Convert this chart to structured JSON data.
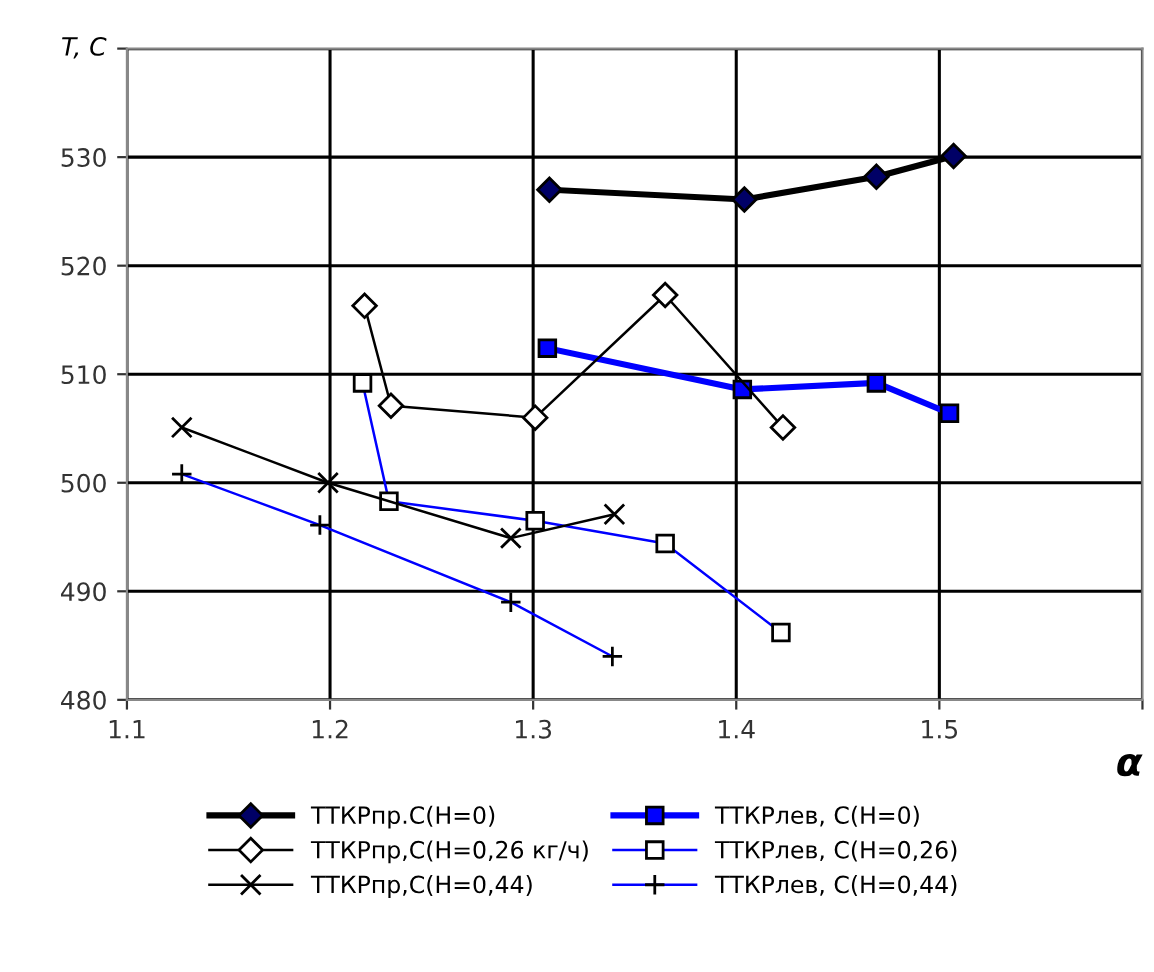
{
  "chart_data": {
    "type": "line",
    "ylabel": "T, C",
    "xlabel": "α",
    "xlim": [
      1.1,
      1.6
    ],
    "xticks": [
      1.1,
      1.2,
      1.3,
      1.4,
      1.5,
      {
        "value": 1.6,
        "label": null
      }
    ],
    "ylim": [
      480,
      540
    ],
    "yticks": [
      480,
      490,
      500,
      510,
      520,
      530,
      {
        "value": 540,
        "label": null
      }
    ],
    "grid": true,
    "legend": "bottom",
    "series": [
      {
        "name": "ТТКРпр.С(Н=0)",
        "color": "#000000",
        "marker": "diamond",
        "x": [
          1.308,
          1.404,
          1.469,
          1.507
        ],
        "values": [
          527.0,
          526.1,
          528.2,
          530.1
        ]
      },
      {
        "name": "ТТКРлев, С(Н=0)",
        "color": "#0000ff",
        "marker": "square",
        "x": [
          1.307,
          1.403,
          1.469,
          1.505
        ],
        "values": [
          512.4,
          508.6,
          509.2,
          506.4
        ]
      },
      {
        "name": "ТТКРпр,С(Н=0,26 кг/ч)",
        "color": "#000000",
        "marker": "diamond",
        "x": [
          1.217,
          1.23,
          1.301,
          1.365,
          1.423
        ],
        "values": [
          516.3,
          507.1,
          506.0,
          517.3,
          505.1
        ]
      },
      {
        "name": "ТТКРлев, С(Н=0,26)",
        "color": "#0000ff",
        "marker": "square",
        "x": [
          1.216,
          1.229,
          1.301,
          1.365,
          1.422
        ],
        "values": [
          509.2,
          498.3,
          496.5,
          494.4,
          486.2
        ]
      },
      {
        "name": "ТТКРпр,С(Н=0,44)",
        "color": "#000000",
        "marker": "cross",
        "x": [
          1.127,
          1.199,
          1.289,
          1.34
        ],
        "values": [
          505.1,
          500.0,
          494.9,
          497.1
        ]
      },
      {
        "name": "ТТКРлев, С(Н=0,44)",
        "color": "#0000ff",
        "marker": "plus",
        "x": [
          1.127,
          1.195,
          1.289,
          1.339
        ],
        "values": [
          500.8,
          496.1,
          489.0,
          484.0
        ]
      }
    ]
  }
}
